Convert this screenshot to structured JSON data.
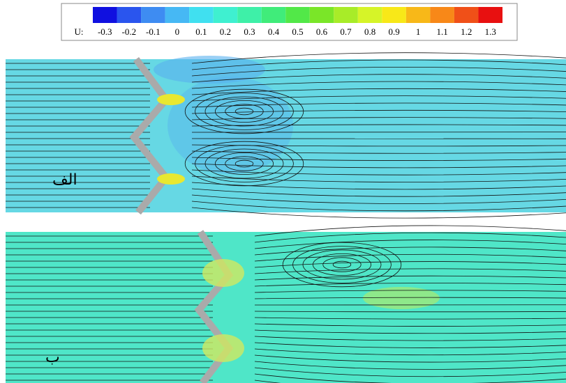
{
  "colorbar": {
    "label": "U:",
    "levels": [
      -0.3,
      -0.2,
      -0.1,
      0,
      0.1,
      0.2,
      0.3,
      0.4,
      0.5,
      0.6,
      0.7,
      0.8,
      0.9,
      1,
      1.1,
      1.2,
      1.3
    ],
    "colors": [
      "#1010e0",
      "#2a55ee",
      "#3e8cf2",
      "#46b8f4",
      "#40e0f0",
      "#3ff0d0",
      "#3ef0a8",
      "#40ec7a",
      "#52e848",
      "#7ae628",
      "#a8ec28",
      "#d6f428",
      "#f8e818",
      "#f8b818",
      "#f88818",
      "#f05018",
      "#e81010"
    ]
  },
  "panels": [
    {
      "label": "الف"
    },
    {
      "label": "ب"
    }
  ]
}
